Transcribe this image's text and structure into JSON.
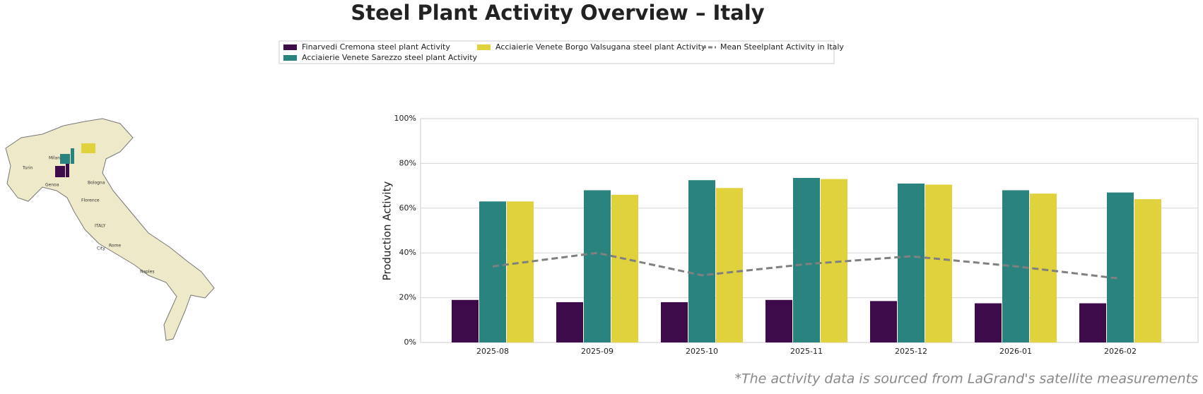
{
  "chart_data": {
    "type": "bar",
    "title": "Steel Plant Activity Overview – Italy",
    "ylabel": "Production Activity",
    "footnote": "*The activity data is sourced from LaGrand's satellite measurements",
    "categories": [
      "2025-08",
      "2025-09",
      "2025-10",
      "2025-11",
      "2025-12",
      "2026-01",
      "2026-02"
    ],
    "series": [
      {
        "name": "Finarvedi Cremona steel plant Activity",
        "color": "#3d0b4a",
        "values": [
          19,
          18,
          18,
          19,
          18.5,
          17.5,
          17.5
        ]
      },
      {
        "name": "Acciaierie Venete Sarezzo steel plant Activity",
        "color": "#2b837f",
        "values": [
          63,
          68,
          72.5,
          73.5,
          71,
          68,
          67
        ]
      },
      {
        "name": "Acciaierie Venete Borgo Valsugana steel plant Activity",
        "color": "#e0d23c",
        "values": [
          63,
          66,
          69,
          73,
          70.5,
          66.5,
          64
        ]
      },
      {
        "name": "Mean Steelplant Activity in Italy",
        "color": "#808080",
        "type": "line",
        "dashed": true,
        "values": [
          34,
          40,
          30,
          35,
          38.5,
          34,
          28.5
        ]
      }
    ],
    "ylim": [
      0,
      100
    ],
    "yticks": [
      {
        "value": 0,
        "label": "0%"
      },
      {
        "value": 20,
        "label": "20%"
      },
      {
        "value": 40,
        "label": "40%"
      },
      {
        "value": 60,
        "label": "60%"
      },
      {
        "value": 80,
        "label": "80%"
      },
      {
        "value": 100,
        "label": "100%"
      }
    ],
    "grid": true
  },
  "map": {
    "labels": [
      "Milan",
      "Turin",
      "Genoa",
      "Bologna",
      "Florence",
      "ITALY",
      "Rome",
      "City",
      "Naples"
    ]
  }
}
